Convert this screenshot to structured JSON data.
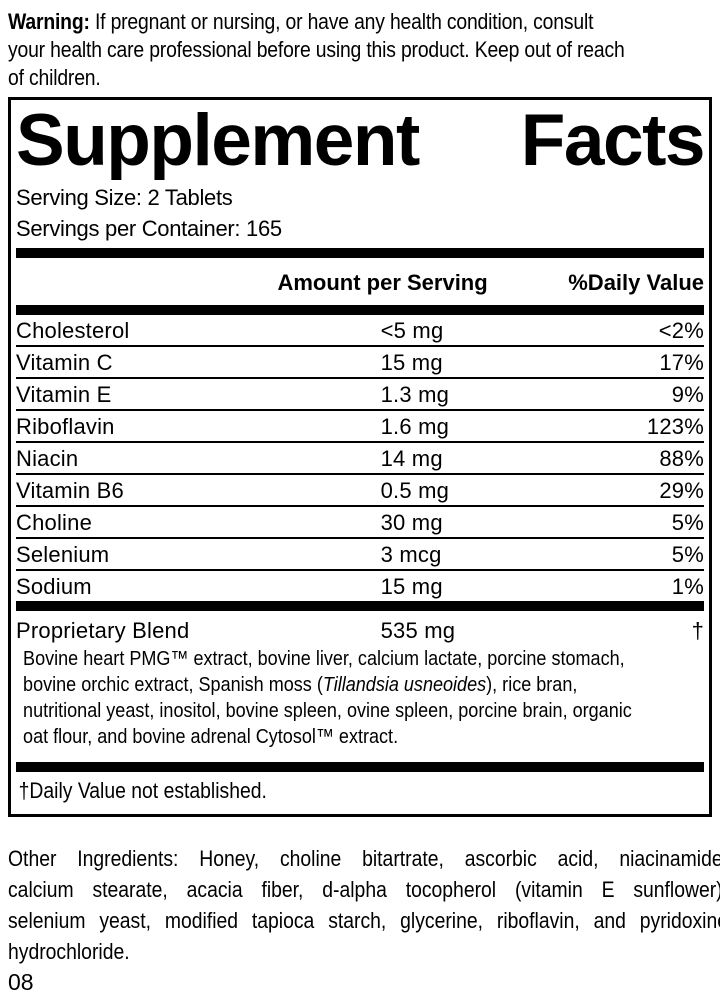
{
  "colors": {
    "text": "#000000",
    "background": "#ffffff",
    "rule": "#000000"
  },
  "warning": {
    "label": "Warning:",
    "first_line_rest": " If pregnant or nursing, or have any health condition, consult",
    "lines": [
      "your health care professional before using this product. Keep out of reach",
      "of children."
    ]
  },
  "panel": {
    "title_left": "Supplement",
    "title_right": "Facts",
    "serving_size": "Serving Size: 2 Tablets",
    "servings_per_container": "Servings per Container: 165",
    "header": {
      "amount": "Amount per Serving",
      "daily_value": "%Daily Value"
    },
    "rows": [
      {
        "name": "Cholesterol",
        "amount": "<5 mg",
        "dv": "<2%"
      },
      {
        "name": "Vitamin C",
        "amount": "15 mg",
        "dv": "17%"
      },
      {
        "name": "Vitamin E",
        "amount": "1.3 mg",
        "dv": "9%"
      },
      {
        "name": "Riboflavin",
        "amount": "1.6 mg",
        "dv": "123%"
      },
      {
        "name": "Niacin",
        "amount": "14 mg",
        "dv": "88%"
      },
      {
        "name": "Vitamin B6",
        "amount": "0.5 mg",
        "dv": "29%"
      },
      {
        "name": "Choline",
        "amount": "30 mg",
        "dv": "5%"
      },
      {
        "name": "Selenium",
        "amount": "3 mcg",
        "dv": "5%"
      },
      {
        "name": "Sodium",
        "amount": "15 mg",
        "dv": "1%"
      }
    ],
    "blend": {
      "name": "Proprietary Blend",
      "amount": "535 mg",
      "dv": "†",
      "description_lines": [
        [
          {
            "t": "Bovine heart PMG™ extract, bovine liver, calcium lactate, porcine stomach,"
          }
        ],
        [
          {
            "t": "bovine orchic extract, Spanish moss ("
          },
          {
            "t": "Tillandsia usneoides",
            "i": true
          },
          {
            "t": "), rice bran,"
          }
        ],
        [
          {
            "t": "nutritional yeast, inositol, bovine spleen, ovine spleen, porcine brain, organic"
          }
        ],
        [
          {
            "t": "oat flour, and bovine adrenal Cytosol™ extract."
          }
        ]
      ]
    },
    "footnote": "†Daily Value not established."
  },
  "other_ingredients": {
    "lines": [
      "Other Ingredients: Honey, choline bitartrate, ascorbic acid, niacinamide,",
      "calcium stearate, acacia fiber, d-alpha tocopherol (vitamin E sunflower),",
      "selenium yeast, modified tapioca starch, glycerine, riboflavin, and pyridoxine",
      "hydrochloride."
    ]
  },
  "page_code": "08"
}
